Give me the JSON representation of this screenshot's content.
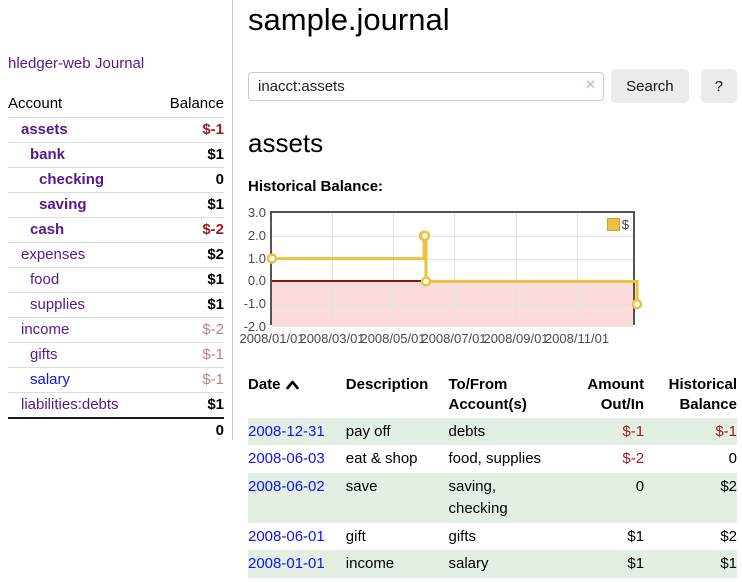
{
  "app": {
    "title": "hledger-web"
  },
  "sidebar": {
    "journal_label": "Journal",
    "accounts_table": {
      "col_account": "Account",
      "col_balance": "Balance",
      "accounts": [
        {
          "name": "assets",
          "balance": "$-1",
          "depth": 1,
          "emph": true,
          "tone": "neg-strong"
        },
        {
          "name": "bank",
          "balance": "$1",
          "depth": 2,
          "emph": true,
          "tone": "pos"
        },
        {
          "name": "checking",
          "balance": "0",
          "depth": 3,
          "emph": true,
          "tone": "pos"
        },
        {
          "name": "saving",
          "balance": "$1",
          "depth": 3,
          "emph": true,
          "tone": "pos"
        },
        {
          "name": "cash",
          "balance": "$-2",
          "depth": 2,
          "emph": true,
          "tone": "neg-strong"
        },
        {
          "name": "expenses",
          "balance": "$2",
          "depth": 1,
          "emph": false,
          "tone": "pos"
        },
        {
          "name": "food",
          "balance": "$1",
          "depth": 2,
          "emph": false,
          "tone": "pos"
        },
        {
          "name": "supplies",
          "balance": "$1",
          "depth": 2,
          "emph": false,
          "tone": "pos"
        },
        {
          "name": "income",
          "balance": "$-2",
          "depth": 1,
          "emph": false,
          "tone": "neg-muted"
        },
        {
          "name": "gifts",
          "balance": "$-1",
          "depth": 2,
          "emph": false,
          "tone": "neg-muted"
        },
        {
          "name": "salary",
          "balance": "$-1",
          "depth": 2,
          "emph": false,
          "tone": "neg-muted",
          "link_tone": "blue"
        },
        {
          "name": "liabilities:debts",
          "balance": "$1",
          "depth": 1,
          "emph": false,
          "tone": "pos"
        }
      ],
      "total": "0"
    }
  },
  "main": {
    "title": "sample.journal",
    "search": {
      "value": "inacct:assets",
      "clear_icon": "×",
      "button_label": "Search",
      "help_label": "?"
    },
    "account_heading": "assets",
    "chart_label": "Historical Balance:"
  },
  "chart_data": {
    "type": "line",
    "step": true,
    "title": "Historical Balance",
    "series": [
      {
        "name": "$",
        "color": "#edc240",
        "points": [
          [
            "2008-01-01",
            1
          ],
          [
            "2008-06-01",
            2
          ],
          [
            "2008-06-02",
            2
          ],
          [
            "2008-06-03",
            0
          ],
          [
            "2008-12-31",
            -1
          ]
        ]
      }
    ],
    "xlim": [
      "2008-01-01",
      "2008-12-31"
    ],
    "ylim": [
      -2,
      3
    ],
    "yticks": [
      {
        "v": 3,
        "label": "3.0"
      },
      {
        "v": 2,
        "label": "2.0"
      },
      {
        "v": 1,
        "label": "1.0"
      },
      {
        "v": 0,
        "label": "0.0"
      },
      {
        "v": -1,
        "label": "-1.0"
      },
      {
        "v": -2,
        "label": "-2.0"
      }
    ],
    "xticks": [
      {
        "date": "2008-01-01",
        "label": "2008/01/01"
      },
      {
        "date": "2008-03-01",
        "label": "2008/03/01"
      },
      {
        "date": "2008-05-01",
        "label": "2008/05/01"
      },
      {
        "date": "2008-07-01",
        "label": "2008/07/01"
      },
      {
        "date": "2008-09-01",
        "label": "2008/09/01"
      },
      {
        "date": "2008-11-01",
        "label": "2008/11/01"
      }
    ],
    "legend": {
      "label": "$",
      "position": "top-right"
    },
    "grid": true,
    "negative_region_color": "#fbdbdb",
    "zero_line_color": "#8a1515",
    "border_color": "#545454"
  },
  "table": {
    "headers": {
      "date": "Date",
      "description": "Description",
      "accounts": "To/From Account(s)",
      "amount": "Amount Out/In",
      "balance": "Historical Balance"
    },
    "sort": {
      "column": "date",
      "direction": "ascending"
    },
    "rows": [
      {
        "date": "2008-12-31",
        "description": "pay off",
        "accounts": "debts",
        "amount": "$-1",
        "balance": "$-1",
        "amount_tone": "neg",
        "balance_tone": "neg"
      },
      {
        "date": "2008-06-03",
        "description": "eat & shop",
        "accounts": "food, supplies",
        "amount": "$-2",
        "balance": "0",
        "amount_tone": "neg",
        "balance_tone": "pos"
      },
      {
        "date": "2008-06-02",
        "description": "save",
        "accounts": "saving, checking",
        "amount": "0",
        "balance": "$2",
        "amount_tone": "pos",
        "balance_tone": "pos"
      },
      {
        "date": "2008-06-01",
        "description": "gift",
        "accounts": "gifts",
        "amount": "$1",
        "balance": "$2",
        "amount_tone": "pos",
        "balance_tone": "pos"
      },
      {
        "date": "2008-01-01",
        "description": "income",
        "accounts": "salary",
        "amount": "$1",
        "balance": "$1",
        "amount_tone": "pos",
        "balance_tone": "pos"
      }
    ]
  },
  "colors": {
    "link_purple": "#551A8B",
    "link_blue": "#1414e0",
    "negative_strong": "#9b1c1f",
    "negative_muted": "#c07f80",
    "row_green": "#e2efe2",
    "series_gold": "#edc240",
    "button_gray": "#ebebeb"
  }
}
